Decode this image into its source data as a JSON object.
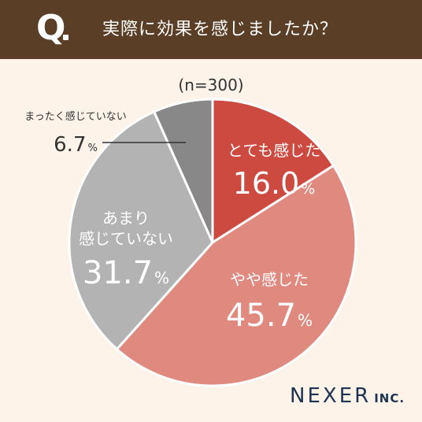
{
  "header": {
    "q_mark": "Q",
    "question": "実際に効果を感じましたか？",
    "background": "#5a3e26"
  },
  "sample_size": "(n=300)",
  "logo": {
    "main": "NEXER",
    "inc": "INC."
  },
  "chart_data": {
    "type": "pie",
    "start": "top",
    "direction": "clockwise",
    "slices": [
      {
        "label": "とても感じた",
        "value": 16.0,
        "display": "16.0",
        "color": "#cd4a40",
        "label_color": "#ffffff"
      },
      {
        "label": "やや感じた",
        "value": 45.7,
        "display": "45.7",
        "color": "#e08a7f",
        "label_color": "#ffffff"
      },
      {
        "label": "あまり\n感じていない",
        "value": 31.7,
        "display": "31.7",
        "color": "#b3b3b3",
        "label_color": "#ffffff"
      },
      {
        "label": "まったく感じていない",
        "value": 6.7,
        "display": "6.7",
        "color": "#888888",
        "label_color": "#333333",
        "outside": true
      }
    ],
    "unit": "%"
  }
}
